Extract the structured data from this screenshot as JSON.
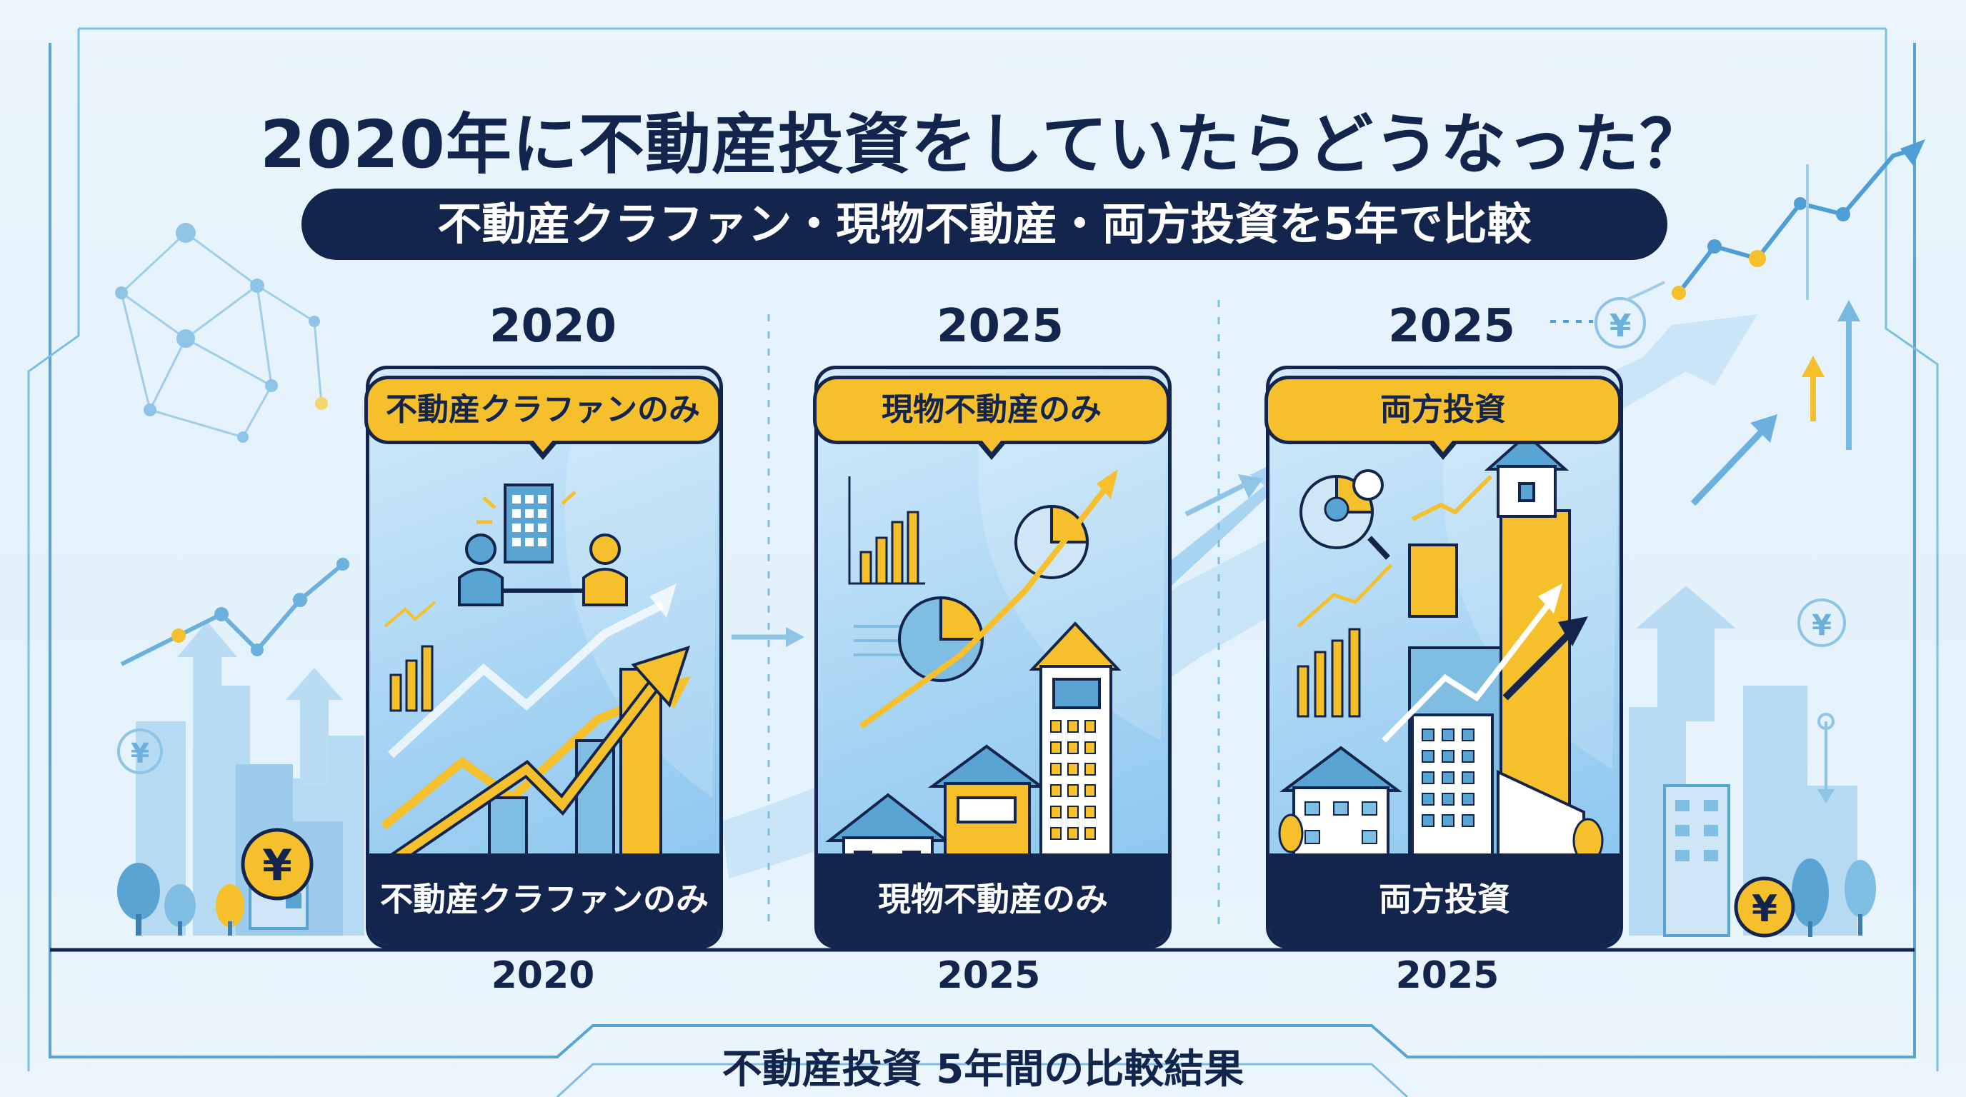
{
  "title": "2020年に不動産投資をしていたらどうなった？",
  "subtitle": "不動産クラファン・現物不動産・両方投資を5年で比較",
  "panels": [
    {
      "year_top": "2020",
      "badge": "不動産クラファンのみ",
      "footer": "不動産クラファンのみ",
      "year_bottom": "2020"
    },
    {
      "year_top": "2025",
      "badge": "現物不動産のみ",
      "footer": "現物不動産のみ",
      "year_bottom": "2025"
    },
    {
      "year_top": "2025",
      "badge": "両方投資",
      "footer": "両方投資",
      "year_bottom": "2025"
    }
  ],
  "footer_label": "不動産投資 5年間の比較結果",
  "yen_symbol": "¥",
  "colors": {
    "navy": "#14254d",
    "yellow": "#f5c02b",
    "light_blue": "#a5d3f3",
    "background": "#e6f3fc"
  },
  "icons": [
    "yen-coin-icon",
    "house-icon",
    "building-icon",
    "bar-chart-icon",
    "pie-chart-icon",
    "handshake-icon",
    "trend-arrow-icon",
    "network-icon"
  ]
}
